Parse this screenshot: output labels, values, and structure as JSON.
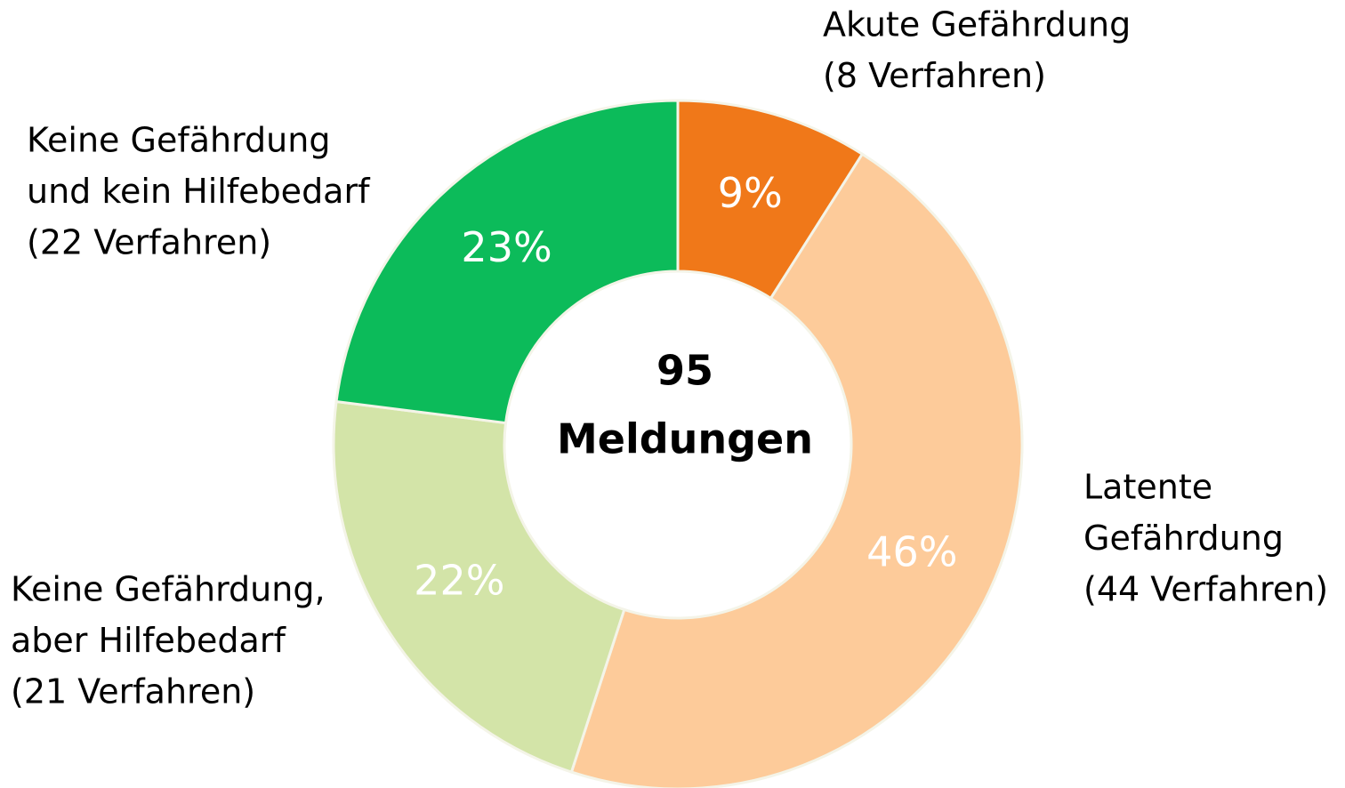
{
  "chart_data": {
    "type": "donut",
    "categories": [
      [
        "Akute Gefährdung",
        "(8 Verfahren)"
      ],
      [
        "Latente",
        "Gefährdung",
        "(44 Verfahren)"
      ],
      [
        "Keine Gefährdung,",
        "aber Hilfebedarf",
        "(21 Verfahren)"
      ],
      [
        "Keine Gefährdung",
        "und kein Hilfebedarf",
        "(22 Verfahren)"
      ]
    ],
    "values": [
      9,
      46,
      22,
      23
    ],
    "value_labels": [
      "9%",
      "46%",
      "22%",
      "23%"
    ],
    "colors": [
      "#f07819",
      "#fdcb9a",
      "#d3e4a8",
      "#0cbb5a"
    ],
    "total": 95,
    "total_label": "Meldungen"
  }
}
